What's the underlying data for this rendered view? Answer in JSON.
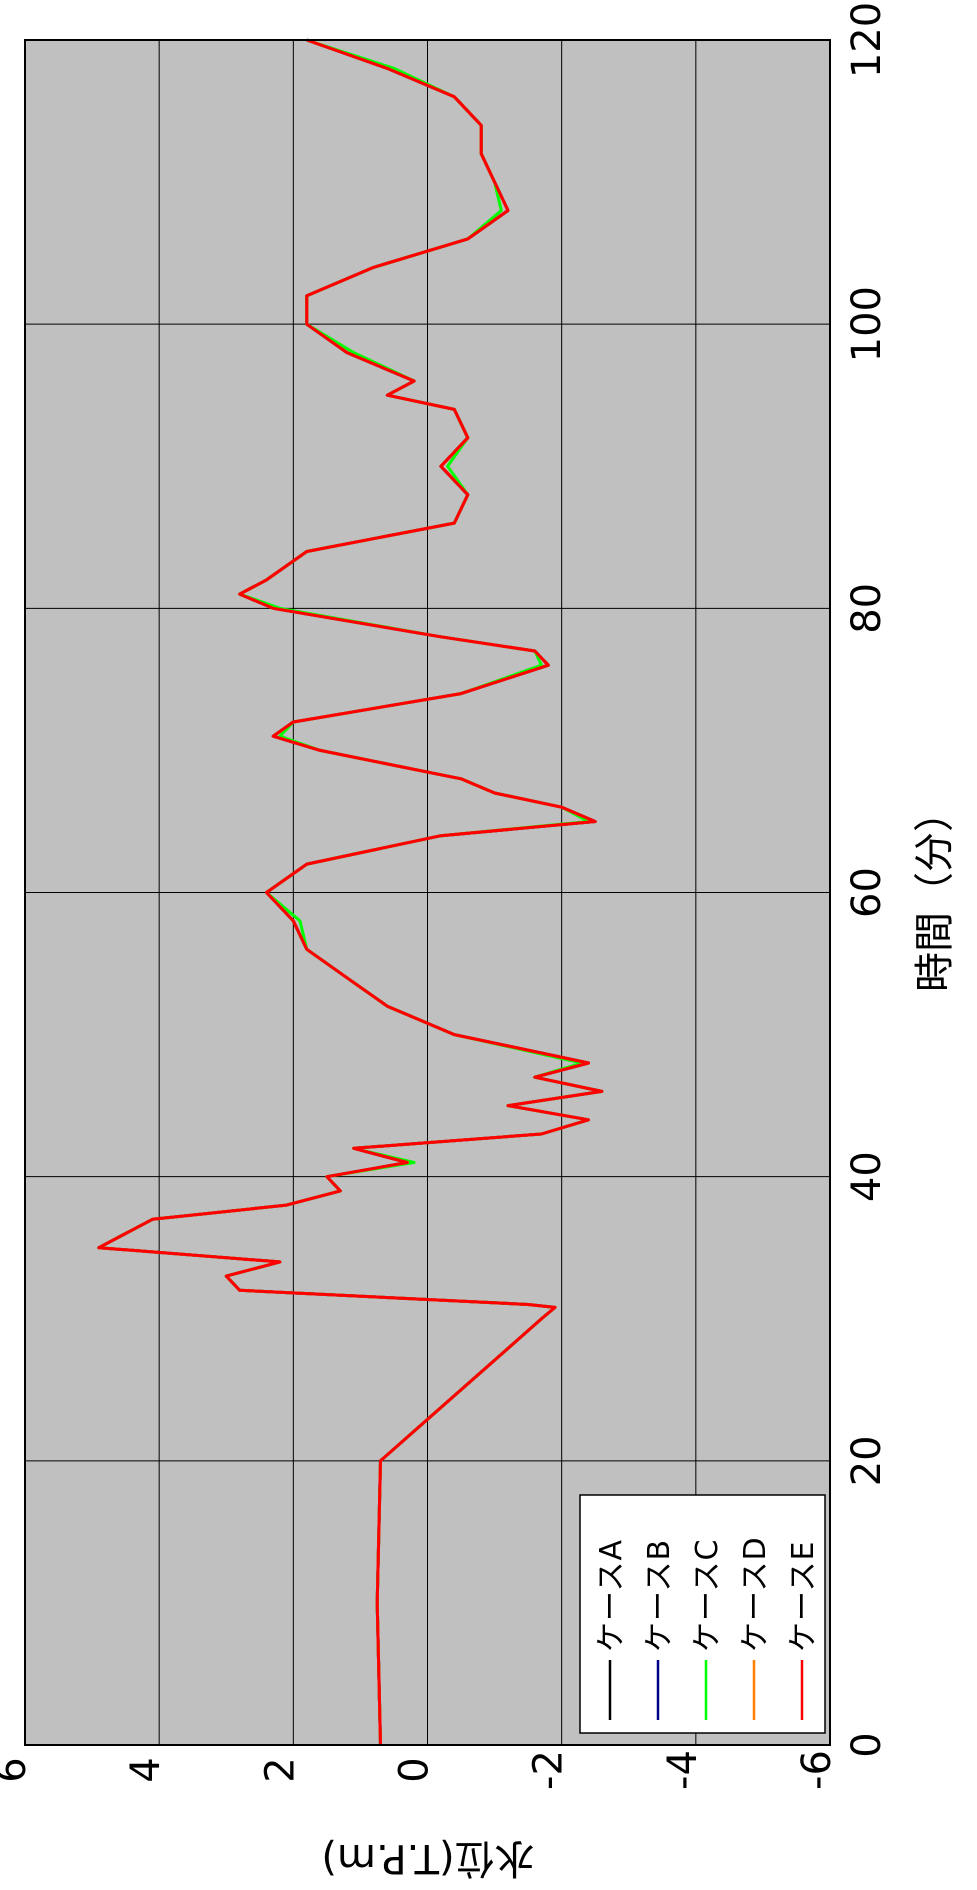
{
  "chart_data": {
    "type": "line",
    "orientation": "rotated-90-clockwise",
    "xlabel": "時間（分）",
    "ylabel": "水位(T.P.m)",
    "xlim": [
      0,
      120
    ],
    "ylim": [
      -6,
      6
    ],
    "x_ticks": [
      "0",
      "20",
      "40",
      "60",
      "80",
      "100",
      "120"
    ],
    "y_ticks": [
      "6",
      "4",
      "2",
      "0",
      "-2",
      "-4",
      "-6"
    ],
    "x_tick_values": [
      0,
      20,
      40,
      60,
      80,
      100,
      120
    ],
    "y_tick_values": [
      6,
      4,
      2,
      0,
      -2,
      -4,
      -6
    ],
    "grid": true,
    "plot_background": "#c0c0c0",
    "legend_position": "bottom-left",
    "x": [
      0,
      10,
      20,
      30,
      30.8,
      31,
      32,
      33,
      34,
      35,
      36,
      37,
      38,
      39,
      40,
      41,
      42,
      43,
      44,
      45,
      46,
      47,
      48,
      50,
      52,
      54,
      56,
      58,
      60,
      62,
      64,
      65,
      66,
      67,
      68,
      70,
      71,
      72,
      74,
      76,
      77,
      78,
      80,
      81,
      82,
      84,
      86,
      88,
      90,
      92,
      94,
      95,
      96,
      98,
      100,
      102,
      104,
      106,
      108,
      110,
      112,
      114,
      116,
      118,
      120
    ],
    "series": [
      {
        "name": "ケースA",
        "color": "#000000",
        "values": [
          0.7,
          0.75,
          0.7,
          -1.7,
          -1.9,
          -1.5,
          2.8,
          3.0,
          2.2,
          4.9,
          4.5,
          4.1,
          2.1,
          1.3,
          1.5,
          0.3,
          1.1,
          -1.7,
          -2.4,
          -1.2,
          -2.6,
          -1.6,
          -2.4,
          -0.4,
          0.6,
          1.2,
          1.8,
          2.0,
          2.4,
          1.8,
          -0.2,
          -2.5,
          -2.0,
          -1.0,
          -0.5,
          1.6,
          2.3,
          2.0,
          -0.5,
          -1.8,
          -1.6,
          -0.2,
          2.3,
          2.8,
          2.4,
          1.8,
          -0.4,
          -0.6,
          -0.2,
          -0.6,
          -0.4,
          0.6,
          0.2,
          1.2,
          1.8,
          1.8,
          0.8,
          -0.6,
          -1.2,
          -1.0,
          -0.8,
          -0.8,
          -0.4,
          0.6,
          1.8
        ]
      },
      {
        "name": "ケースB",
        "color": "#00008b",
        "values": [
          0.7,
          0.75,
          0.7,
          -1.7,
          -1.9,
          -1.5,
          2.8,
          3.0,
          2.2,
          4.9,
          4.5,
          4.1,
          2.1,
          1.3,
          1.5,
          0.3,
          1.1,
          -1.7,
          -2.4,
          -1.2,
          -2.6,
          -1.6,
          -2.4,
          -0.4,
          0.6,
          1.2,
          1.8,
          2.0,
          2.4,
          1.8,
          -0.2,
          -2.5,
          -2.0,
          -1.0,
          -0.5,
          1.6,
          2.3,
          2.0,
          -0.5,
          -1.8,
          -1.6,
          -0.2,
          2.3,
          2.8,
          2.4,
          1.8,
          -0.4,
          -0.6,
          -0.2,
          -0.6,
          -0.4,
          0.6,
          0.2,
          1.2,
          1.8,
          1.8,
          0.8,
          -0.6,
          -1.2,
          -1.0,
          -0.8,
          -0.8,
          -0.4,
          0.6,
          1.8
        ]
      },
      {
        "name": "ケースC",
        "color": "#00ff00",
        "values": [
          0.7,
          0.75,
          0.7,
          -1.7,
          -1.9,
          -1.5,
          2.8,
          3.0,
          2.2,
          4.9,
          4.5,
          4.1,
          2.1,
          1.3,
          1.5,
          0.2,
          1.1,
          -1.7,
          -2.4,
          -1.2,
          -2.6,
          -1.6,
          -2.3,
          -0.4,
          0.6,
          1.2,
          1.8,
          1.9,
          2.4,
          1.8,
          -0.2,
          -2.4,
          -2.0,
          -1.0,
          -0.5,
          1.6,
          2.2,
          2.0,
          -0.5,
          -1.7,
          -1.6,
          -0.2,
          2.2,
          2.8,
          2.4,
          1.8,
          -0.4,
          -0.6,
          -0.3,
          -0.6,
          -0.4,
          0.6,
          0.2,
          1.1,
          1.8,
          1.8,
          0.8,
          -0.6,
          -1.1,
          -1.0,
          -0.8,
          -0.8,
          -0.4,
          0.5,
          1.8
        ]
      },
      {
        "name": "ケースD",
        "color": "#ff7f00",
        "values": [
          0.7,
          0.75,
          0.7,
          -1.7,
          -1.9,
          -1.5,
          2.8,
          3.0,
          2.2,
          4.9,
          4.5,
          4.1,
          2.1,
          1.3,
          1.5,
          0.3,
          1.1,
          -1.7,
          -2.4,
          -1.2,
          -2.6,
          -1.6,
          -2.4,
          -0.4,
          0.6,
          1.2,
          1.8,
          2.0,
          2.4,
          1.8,
          -0.2,
          -2.5,
          -2.0,
          -1.0,
          -0.5,
          1.6,
          2.3,
          2.0,
          -0.5,
          -1.8,
          -1.6,
          -0.2,
          2.3,
          2.8,
          2.4,
          1.8,
          -0.4,
          -0.6,
          -0.2,
          -0.6,
          -0.4,
          0.6,
          0.2,
          1.2,
          1.8,
          1.8,
          0.8,
          -0.6,
          -1.2,
          -1.0,
          -0.8,
          -0.8,
          -0.4,
          0.6,
          1.8
        ]
      },
      {
        "name": "ケースE",
        "color": "#ff0000",
        "values": [
          0.7,
          0.75,
          0.7,
          -1.7,
          -1.9,
          -1.5,
          2.8,
          3.0,
          2.2,
          4.9,
          4.5,
          4.1,
          2.1,
          1.3,
          1.5,
          0.3,
          1.1,
          -1.7,
          -2.4,
          -1.2,
          -2.6,
          -1.6,
          -2.4,
          -0.4,
          0.6,
          1.2,
          1.8,
          2.0,
          2.4,
          1.8,
          -0.2,
          -2.5,
          -2.0,
          -1.0,
          -0.5,
          1.6,
          2.3,
          2.0,
          -0.5,
          -1.8,
          -1.6,
          -0.2,
          2.3,
          2.8,
          2.4,
          1.8,
          -0.4,
          -0.6,
          -0.2,
          -0.6,
          -0.4,
          0.6,
          0.2,
          1.2,
          1.8,
          1.8,
          0.8,
          -0.6,
          -1.2,
          -1.0,
          -0.8,
          -0.8,
          -0.4,
          0.6,
          1.8
        ]
      }
    ]
  }
}
